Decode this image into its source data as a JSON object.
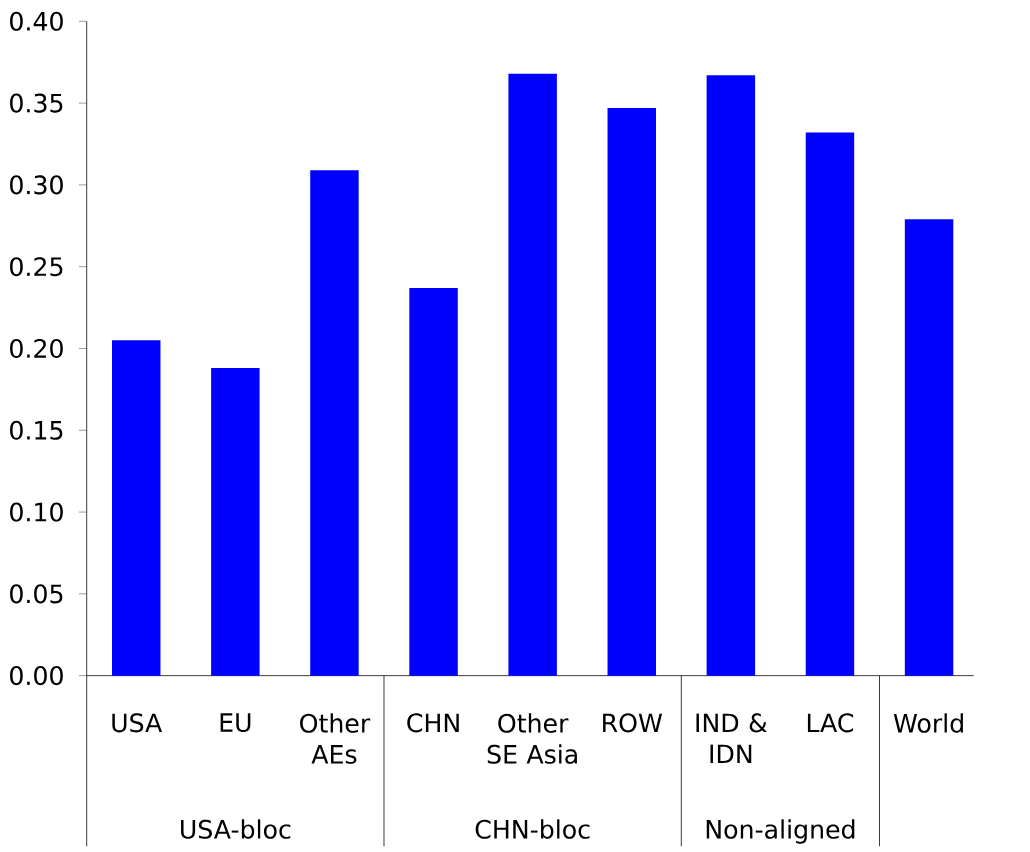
{
  "chart_data": {
    "type": "bar",
    "categories": [
      "USA",
      "EU",
      "Other AEs",
      "CHN",
      "Other SE Asia",
      "ROW",
      "IND & IDN",
      "LAC",
      "World"
    ],
    "values": [
      0.205,
      0.188,
      0.309,
      0.237,
      0.368,
      0.347,
      0.367,
      0.332,
      0.279
    ],
    "color": "#0000ff",
    "ylim": [
      0,
      0.4
    ],
    "yticks": [
      {
        "value": 0,
        "label": "0.00"
      },
      {
        "value": 0.05,
        "label": "0.05"
      },
      {
        "value": 0.1,
        "label": "0.10"
      },
      {
        "value": 0.15,
        "label": "0.15"
      },
      {
        "value": 0.2,
        "label": "0.20"
      },
      {
        "value": 0.25,
        "label": "0.25"
      },
      {
        "value": 0.3,
        "label": "0.30"
      },
      {
        "value": 0.35,
        "label": "0.35"
      },
      {
        "value": 0.4,
        "label": "0.40"
      }
    ],
    "annotations": [
      "USA-bloc",
      "CHN-bloc",
      "Non-aligned"
    ],
    "grid": false
  }
}
